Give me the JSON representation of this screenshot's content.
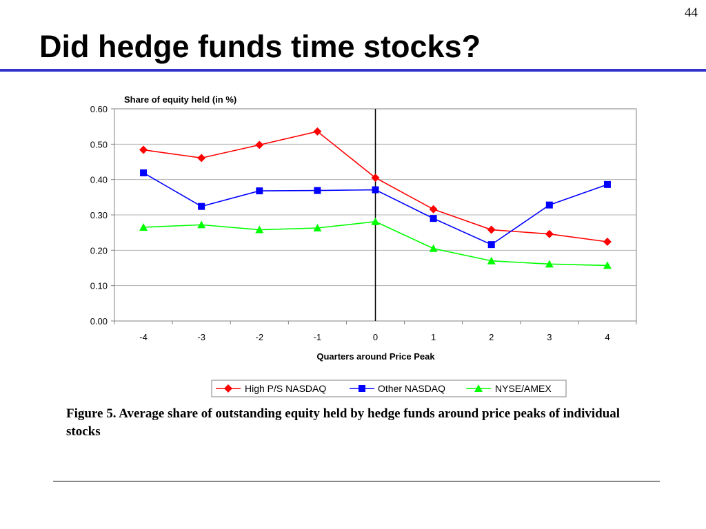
{
  "slide": {
    "number": "44",
    "title": "Did hedge funds time stocks?",
    "caption": "Figure 5. Average share of outstanding equity held by hedge funds around price peaks of individual stocks"
  },
  "chart_data": {
    "type": "line",
    "ylabel": "Share of equity held (in %)",
    "xlabel": "Quarters around Price Peak",
    "x": [
      -4,
      -3,
      -2,
      -1,
      0,
      1,
      2,
      3,
      4
    ],
    "x_tick_labels": [
      "-4",
      "-3",
      "-2",
      "-1",
      "0",
      "1",
      "2",
      "3",
      "4"
    ],
    "ylim": [
      0,
      0.6
    ],
    "y_ticks": [
      0,
      0.1,
      0.2,
      0.3,
      0.4,
      0.5,
      0.6
    ],
    "y_tick_labels": [
      "0.00",
      "0.10",
      "0.20",
      "0.30",
      "0.40",
      "0.50",
      "0.60"
    ],
    "grid": true,
    "vertical_reference_line_at": 0,
    "legend_position": "bottom",
    "series": [
      {
        "name": "High P/S NASDAQ",
        "color": "#ff0000",
        "marker": "diamond",
        "values": [
          0.484,
          0.461,
          0.498,
          0.536,
          0.405,
          0.316,
          0.258,
          0.246,
          0.224
        ]
      },
      {
        "name": "Other NASDAQ",
        "color": "#0000ff",
        "marker": "square",
        "values": [
          0.419,
          0.324,
          0.368,
          0.369,
          0.371,
          0.29,
          0.216,
          0.328,
          0.386
        ]
      },
      {
        "name": "NYSE/AMEX",
        "color": "#00ff00",
        "marker": "triangle",
        "values": [
          0.265,
          0.272,
          0.258,
          0.263,
          0.281,
          0.205,
          0.17,
          0.161,
          0.157
        ]
      }
    ]
  }
}
